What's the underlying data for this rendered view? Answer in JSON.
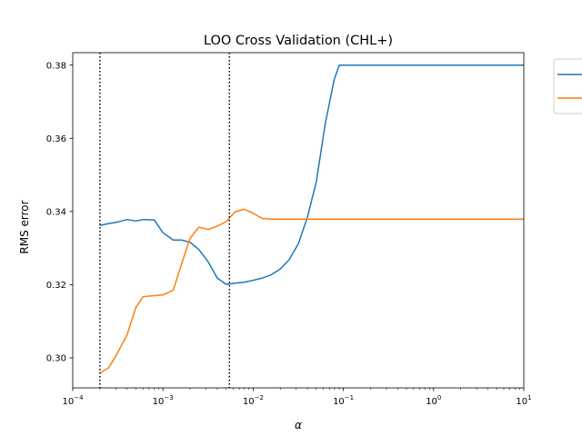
{
  "chart_data": {
    "type": "line",
    "title": "LOO Cross Validation (CHL+)",
    "xlabel": "α",
    "ylabel": "RMS error",
    "xscale": "log",
    "xlim": [
      0.0001,
      10
    ],
    "ylim": [
      0.2918,
      0.3834
    ],
    "x_ticks": [
      {
        "value": 0.0001,
        "base": "10",
        "exp": "−4"
      },
      {
        "value": 0.001,
        "base": "10",
        "exp": "−3"
      },
      {
        "value": 0.01,
        "base": "10",
        "exp": "−2"
      },
      {
        "value": 0.1,
        "base": "10",
        "exp": "−1"
      },
      {
        "value": 1,
        "base": "10",
        "exp": "0"
      },
      {
        "value": 10,
        "base": "10",
        "exp": "1"
      }
    ],
    "y_ticks": [
      {
        "value": 0.3,
        "label": "0.30"
      },
      {
        "value": 0.32,
        "label": "0.32"
      },
      {
        "value": 0.34,
        "label": "0.34"
      },
      {
        "value": 0.36,
        "label": "0.36"
      },
      {
        "value": 0.38,
        "label": "0.38"
      }
    ],
    "grid": false,
    "legend_position": "outside-top-right",
    "vlines": [
      0.0002,
      0.00545
    ],
    "series": [
      {
        "color": "#1f77b4",
        "x": [
          0.0002,
          0.00025,
          0.0003,
          0.0004,
          0.0005,
          0.0006,
          0.0008,
          0.001,
          0.0013,
          0.0016,
          0.002,
          0.0025,
          0.0032,
          0.004,
          0.005,
          0.0063,
          0.008,
          0.01,
          0.0126,
          0.0158,
          0.02,
          0.025,
          0.0316,
          0.04,
          0.05,
          0.063,
          0.079,
          0.09,
          0.1,
          0.2,
          0.5,
          1,
          2,
          5,
          10
        ],
        "y": [
          0.3362,
          0.3367,
          0.337,
          0.3378,
          0.3374,
          0.3378,
          0.3377,
          0.3342,
          0.3322,
          0.3322,
          0.3316,
          0.3296,
          0.3261,
          0.3218,
          0.3201,
          0.3204,
          0.3207,
          0.3212,
          0.3218,
          0.3227,
          0.3243,
          0.3268,
          0.3311,
          0.3385,
          0.348,
          0.364,
          0.376,
          0.38,
          0.38,
          0.38,
          0.38,
          0.38,
          0.38,
          0.38,
          0.38
        ]
      },
      {
        "color": "#ff7f0e",
        "x": [
          0.0002,
          0.00025,
          0.0003,
          0.0004,
          0.0005,
          0.0006,
          0.0008,
          0.001,
          0.0013,
          0.0016,
          0.002,
          0.0025,
          0.0032,
          0.004,
          0.005,
          0.0063,
          0.008,
          0.01,
          0.0126,
          0.0158,
          0.02,
          0.05,
          0.1,
          1,
          10
        ],
        "y": [
          0.2958,
          0.2973,
          0.3005,
          0.3063,
          0.3137,
          0.3167,
          0.317,
          0.3172,
          0.3185,
          0.3255,
          0.3327,
          0.3357,
          0.3351,
          0.336,
          0.3372,
          0.3399,
          0.3406,
          0.3395,
          0.3381,
          0.3379,
          0.3379,
          0.3379,
          0.3379,
          0.3379,
          0.3379
        ]
      }
    ]
  }
}
